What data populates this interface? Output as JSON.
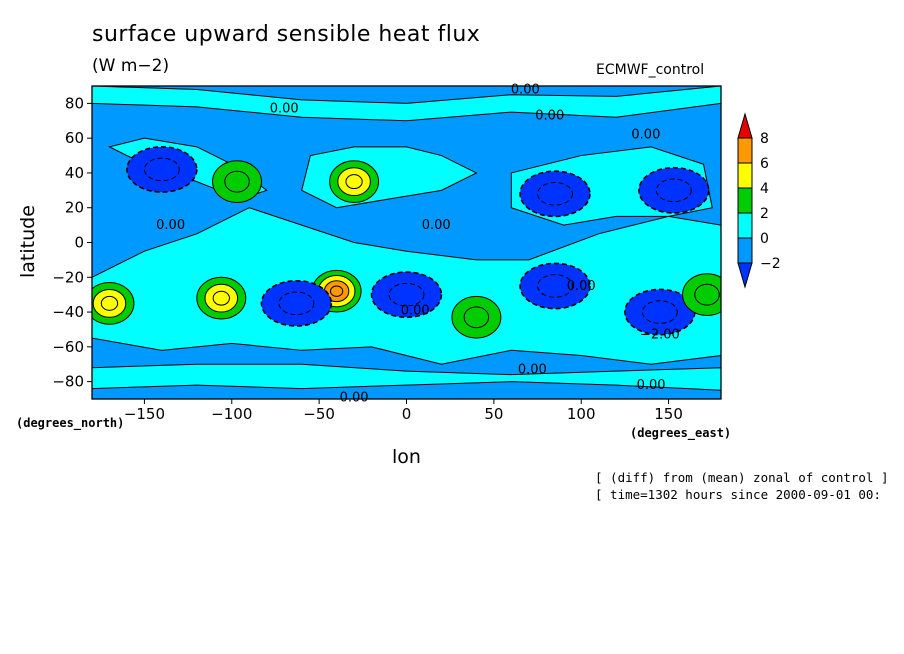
{
  "title": "surface upward sensible heat flux",
  "units": "(W m−2)",
  "model_label": "ECMWF_control",
  "notes": [
    "[ (diff) from (mean) zonal of control ]",
    "[ time=1302 hours since 2000-09-01 00:"
  ],
  "chart_data": {
    "type": "contour-filled map",
    "xlabel": "lon",
    "ylabel": "latitude",
    "x_unit_label": "(degrees_east)",
    "y_unit_label": "(degrees_north)",
    "xlim": [
      -180,
      180
    ],
    "ylim": [
      -90,
      90
    ],
    "x_ticks": [
      -150,
      -100,
      -50,
      0,
      50,
      100,
      150
    ],
    "y_ticks": [
      80,
      60,
      40,
      20,
      0,
      -20,
      -40,
      -60,
      -80
    ],
    "colorbar": {
      "levels": [
        8,
        6,
        4,
        2,
        0,
        -2
      ],
      "colors": [
        "#e60000",
        "#ff9900",
        "#ffff00",
        "#00cc00",
        "#00ffff",
        "#0099ff",
        "#0033ff"
      ]
    },
    "contour_labels": [
      {
        "lon": -70,
        "lat": 77,
        "text": "0.00"
      },
      {
        "lon": 68,
        "lat": 88,
        "text": "0.00"
      },
      {
        "lon": 82,
        "lat": 73,
        "text": "0.00"
      },
      {
        "lon": 137,
        "lat": 62,
        "text": "0.00"
      },
      {
        "lon": -135,
        "lat": 10,
        "text": "0.00"
      },
      {
        "lon": 17,
        "lat": 10,
        "text": "0.00"
      },
      {
        "lon": 5,
        "lat": -39,
        "text": "0.00"
      },
      {
        "lon": 72,
        "lat": -73,
        "text": "0.00"
      },
      {
        "lon": 140,
        "lat": -82,
        "text": "0.00"
      },
      {
        "lon": -30,
        "lat": -89,
        "text": "0.00"
      },
      {
        "lon": 145,
        "lat": -53,
        "text": "-2.00"
      },
      {
        "lon": 100,
        "lat": -25,
        "text": "0.00"
      }
    ],
    "features": [
      {
        "lon": -140,
        "lat": 42,
        "value": -2.5
      },
      {
        "lon": -97,
        "lat": 35,
        "value": 2.5
      },
      {
        "lon": -30,
        "lat": 35,
        "value": 5.5
      },
      {
        "lon": 85,
        "lat": 28,
        "value": -2.5
      },
      {
        "lon": 153,
        "lat": 30,
        "value": -2.5
      },
      {
        "lon": -170,
        "lat": -35,
        "value": 5
      },
      {
        "lon": -106,
        "lat": -32,
        "value": 5.5
      },
      {
        "lon": -40,
        "lat": -28,
        "value": 6
      },
      {
        "lon": -63,
        "lat": -35,
        "value": -2.5
      },
      {
        "lon": 85,
        "lat": -25,
        "value": -2.5
      },
      {
        "lon": 145,
        "lat": -40,
        "value": -2.5
      },
      {
        "lon": 40,
        "lat": -43,
        "value": 2.5
      },
      {
        "lon": 172,
        "lat": -30,
        "value": 2.5
      },
      {
        "lon": 0,
        "lat": -30,
        "value": -2.2
      }
    ]
  }
}
